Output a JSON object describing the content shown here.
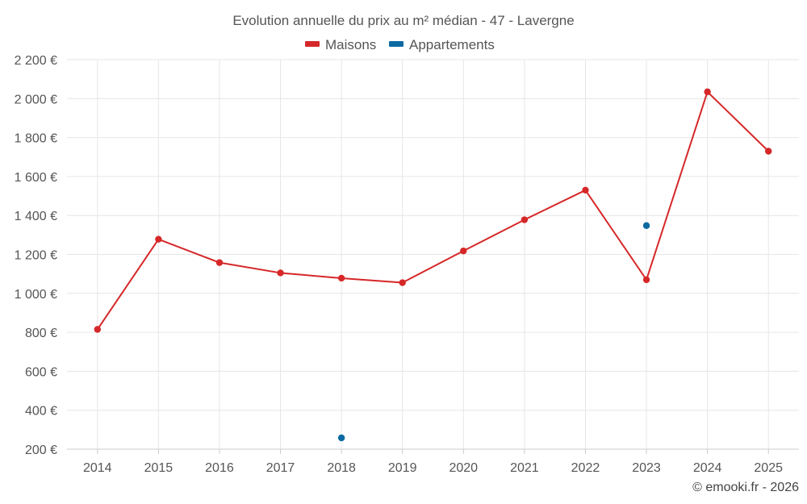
{
  "chart_data": {
    "type": "line",
    "title": "Evolution annuelle du prix au m² médian - 47 - Lavergne",
    "categories": [
      "2014",
      "2015",
      "2016",
      "2017",
      "2018",
      "2019",
      "2020",
      "2021",
      "2022",
      "2023",
      "2024",
      "2025"
    ],
    "series": [
      {
        "name": "Maisons",
        "color": "#d62728",
        "values": [
          815,
          1278,
          1158,
          1105,
          1078,
          1055,
          1218,
          1378,
          1530,
          1070,
          2035,
          1730
        ]
      },
      {
        "name": "Appartements",
        "color": "#0b6aa2",
        "values": [
          null,
          null,
          null,
          null,
          258,
          null,
          null,
          null,
          null,
          1348,
          null,
          null
        ]
      }
    ],
    "ylim": [
      200,
      2200
    ],
    "yticks": [
      200,
      400,
      600,
      800,
      1000,
      1200,
      1400,
      1600,
      1800,
      2000,
      2200
    ],
    "ytick_labels": [
      "200 €",
      "400 €",
      "600 €",
      "800 €",
      "1 000 €",
      "1 200 €",
      "1 400 €",
      "1 600 €",
      "1 800 €",
      "2 000 €",
      "2 200 €"
    ],
    "grid": true,
    "legend_position": "top-center"
  },
  "credit": "© emooki.fr - 2026"
}
